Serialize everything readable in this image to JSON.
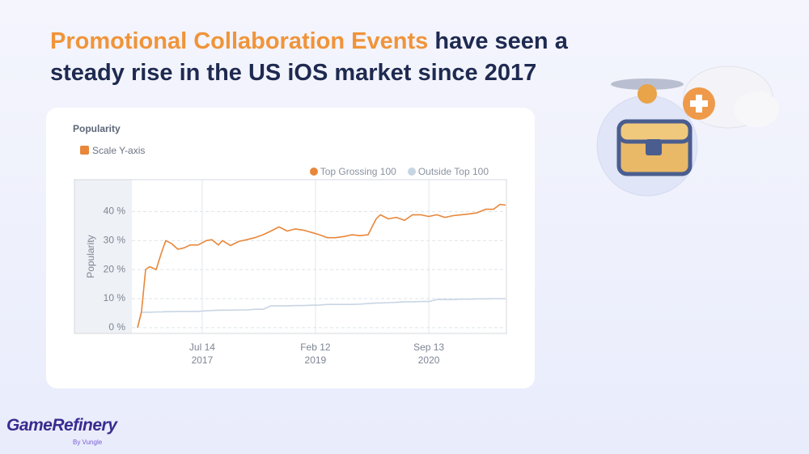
{
  "title": {
    "highlight": "Promotional Collaboration Events",
    "rest": "have seen a steady rise in the US iOS market since 2017"
  },
  "controls": {
    "checkbox": "Scale Y-axis"
  },
  "logo": {
    "name": "GameRefinery",
    "tagline": "By Vungle"
  },
  "chart_data": {
    "type": "line",
    "title": "Popularity",
    "y_label": "Popularity",
    "x": [
      "2016-08-18",
      "2016-09-07",
      "2016-09-28",
      "2016-10-19",
      "2016-11-21",
      "2016-12-19",
      "2017-01-09",
      "2017-02-07",
      "2017-03-12",
      "2017-04-14",
      "2017-05-13",
      "2017-06-23",
      "2017-08-04",
      "2017-09-02",
      "2017-10-05",
      "2017-10-25",
      "2017-12-06",
      "2018-01-16",
      "2018-02-26",
      "2018-04-08",
      "2018-05-20",
      "2018-06-30",
      "2018-08-10",
      "2018-09-21",
      "2018-11-01",
      "2018-12-12",
      "2019-01-23",
      "2019-03-05",
      "2019-04-15",
      "2019-05-26",
      "2019-07-07",
      "2019-08-17",
      "2019-09-27",
      "2019-11-08",
      "2019-12-19",
      "2020-01-09",
      "2020-02-19",
      "2020-03-31",
      "2020-05-12",
      "2020-06-22",
      "2020-08-02",
      "2020-09-12",
      "2020-10-24",
      "2020-12-04",
      "2021-01-14",
      "2021-02-25",
      "2021-04-07",
      "2021-05-18",
      "2021-06-29",
      "2021-08-09",
      "2021-09-11",
      "2021-10-10"
    ],
    "series": [
      {
        "name": "Top Grossing 100",
        "color": "#e8873a",
        "values": [
          0,
          5.5,
          20,
          21,
          20,
          26,
          30,
          29,
          27,
          27.5,
          28.5,
          28.5,
          30,
          30.3,
          28.5,
          30,
          28.3,
          29.7,
          30.3,
          31,
          32,
          33.3,
          34.7,
          33.3,
          34,
          33.6,
          32.8,
          32,
          31,
          31,
          31.4,
          32,
          31.7,
          32,
          37.5,
          38.9,
          37.5,
          38,
          37,
          38.9,
          38.9,
          38.3,
          38.9,
          38,
          38.6,
          38.9,
          39.2,
          39.6,
          40.8,
          40.8,
          42.5,
          42.2
        ]
      },
      {
        "name": "Outside Top 100",
        "color": "#c8d5e3",
        "values": [
          0,
          5.3,
          5.3,
          5.3,
          5.4,
          5.4,
          5.5,
          5.5,
          5.6,
          5.6,
          5.6,
          5.6,
          5.8,
          5.9,
          6,
          6,
          6,
          6.1,
          6.1,
          6.3,
          6.3,
          7.5,
          7.5,
          7.5,
          7.6,
          7.6,
          7.7,
          7.8,
          8,
          8,
          8,
          8,
          8.1,
          8.3,
          8.5,
          8.5,
          8.6,
          8.7,
          8.9,
          8.9,
          9,
          9,
          9.7,
          9.7,
          9.7,
          9.8,
          9.8,
          9.9,
          9.9,
          10,
          10,
          10
        ]
      }
    ],
    "xlim": [
      "2016-07-20",
      "2021-10-14"
    ],
    "xticks": [
      {
        "value": "2017-07-14",
        "label": "Jul 14\n2017"
      },
      {
        "value": "2019-02-12",
        "label": "Feb 12\n2019"
      },
      {
        "value": "2020-09-13",
        "label": "Sep 13\n2020"
      }
    ],
    "ylim": [
      -2,
      51
    ],
    "yticks": [
      {
        "value": 0,
        "label": "0 %"
      },
      {
        "value": 10,
        "label": "10 %"
      },
      {
        "value": 20,
        "label": "20 %"
      },
      {
        "value": 30,
        "label": "30 %"
      },
      {
        "value": 40,
        "label": "40 %"
      }
    ],
    "grid": true,
    "legend": "top-right"
  }
}
